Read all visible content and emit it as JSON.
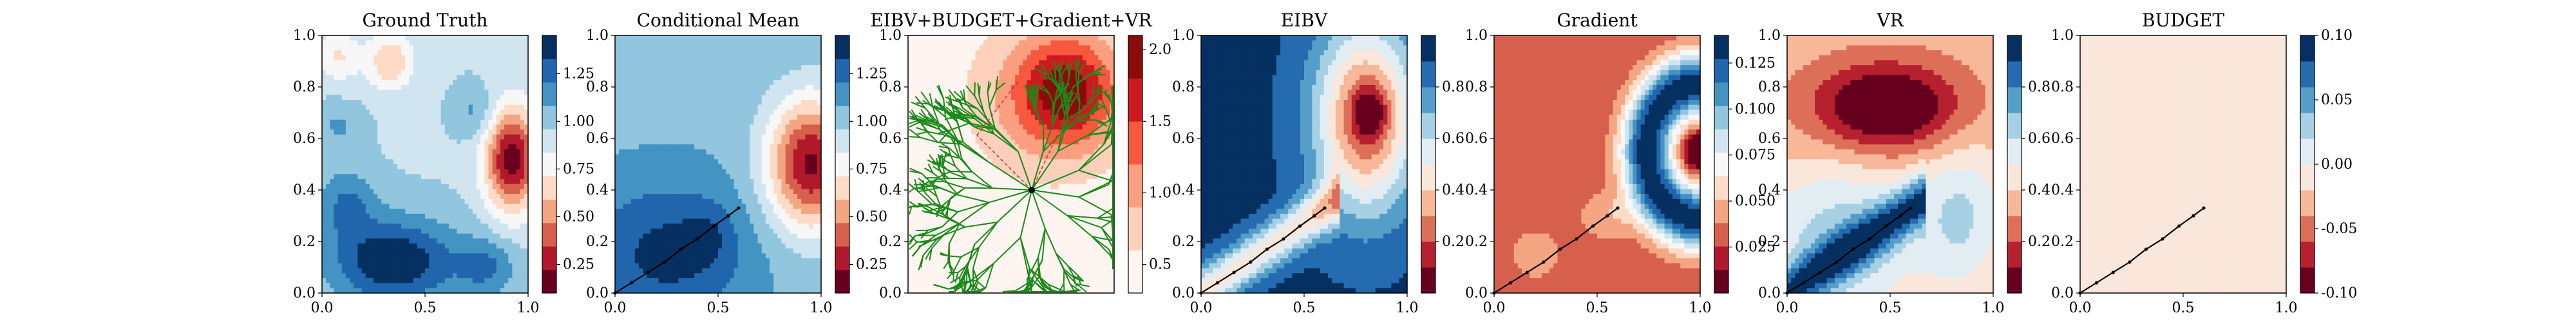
{
  "figure": {
    "background": "#ffffff",
    "panel_titles": [
      "Ground Truth",
      "Conditional Mean",
      "EIBV+BUDGET+Gradient+VR",
      "EIBV",
      "Gradient",
      "VR",
      "BUDGET"
    ]
  },
  "colors": {
    "rdbu": [
      "#67001f",
      "#b2182b",
      "#d6604d",
      "#f4a582",
      "#fddbc7",
      "#f7f7f7",
      "#d1e5f0",
      "#92c5de",
      "#4393c3",
      "#2166ac",
      "#053061"
    ],
    "reds": [
      "#fff5f0",
      "#fdd0bc",
      "#fc9e80",
      "#f7593f",
      "#ce1a1e",
      "#8c0a0a"
    ],
    "tree": "#1a8a1a",
    "path": "#000000",
    "dashed": "#d62728"
  },
  "chart_data": [
    {
      "type": "heatmap",
      "title": "Ground Truth",
      "xlim": [
        0,
        1
      ],
      "ylim": [
        0,
        1
      ],
      "xticks": [
        "0.0",
        "0.5",
        "1.0"
      ],
      "yticks": [
        "0.0",
        "0.2",
        "0.4",
        "0.6",
        "0.8",
        "1.0"
      ],
      "colorbar": {
        "range": [
          0.1,
          1.45
        ],
        "levels": 11,
        "cmap": "RdBu",
        "ticks": [
          "0.25",
          "0.50",
          "0.75",
          "1.00",
          "1.25"
        ]
      },
      "field": "ground_truth",
      "path": []
    },
    {
      "type": "heatmap",
      "title": "Conditional Mean",
      "xlim": [
        0,
        1
      ],
      "ylim": [
        0,
        1
      ],
      "xticks": [
        "0.0",
        "0.5",
        "1.0"
      ],
      "yticks": [
        "0.0",
        "0.2",
        "0.4",
        "0.6",
        "0.8",
        "1.0"
      ],
      "colorbar": {
        "range": [
          0.1,
          1.45
        ],
        "levels": 11,
        "cmap": "RdBu",
        "ticks": [
          "0.25",
          "0.50",
          "0.75",
          "1.00",
          "1.25"
        ]
      },
      "field": "cond_mean",
      "path": [
        [
          0.0,
          0.0
        ],
        [
          0.08,
          0.04
        ],
        [
          0.16,
          0.08
        ],
        [
          0.24,
          0.12
        ],
        [
          0.32,
          0.17
        ],
        [
          0.4,
          0.21
        ],
        [
          0.48,
          0.26
        ],
        [
          0.55,
          0.3
        ],
        [
          0.6,
          0.33
        ]
      ]
    },
    {
      "type": "heatmap",
      "title": "EIBV+BUDGET+Gradient+VR",
      "xlim": [
        0,
        1
      ],
      "ylim": [
        0,
        1
      ],
      "xticks": [],
      "yticks": [
        "0.0",
        "0.2",
        "0.4",
        "0.6",
        "0.8",
        "1.0"
      ],
      "colorbar": {
        "range": [
          0.3,
          2.1
        ],
        "levels": 6,
        "cmap": "Reds",
        "ticks": [
          "0.5",
          "1.0",
          "1.5",
          "2.0"
        ]
      },
      "field": "combined",
      "path": [],
      "tree_root": [
        0.6,
        0.4
      ]
    },
    {
      "type": "heatmap",
      "title": "EIBV",
      "xlim": [
        0,
        1
      ],
      "ylim": [
        0,
        1
      ],
      "xticks": [
        "0.0",
        "0.5",
        "1.0"
      ],
      "yticks": [
        "0.0",
        "0.2",
        "0.4",
        "0.6",
        "0.8",
        "1.0"
      ],
      "colorbar": {
        "range": [
          0,
          1
        ],
        "levels": 10,
        "cmap": "RdBu",
        "ticks": [
          "0.2",
          "0.4",
          "0.6",
          "0.8"
        ]
      },
      "field": "eibv",
      "path": [
        [
          0.0,
          0.0
        ],
        [
          0.08,
          0.04
        ],
        [
          0.16,
          0.08
        ],
        [
          0.24,
          0.12
        ],
        [
          0.32,
          0.17
        ],
        [
          0.4,
          0.21
        ],
        [
          0.48,
          0.26
        ],
        [
          0.55,
          0.3
        ],
        [
          0.6,
          0.33
        ]
      ]
    },
    {
      "type": "heatmap",
      "title": "Gradient",
      "xlim": [
        0,
        1
      ],
      "ylim": [
        0,
        1
      ],
      "xticks": [
        "0.0",
        "0.5",
        "1.0"
      ],
      "yticks": [
        "0.0",
        "0.2",
        "0.4",
        "0.6",
        "0.8",
        "1.0"
      ],
      "colorbar": {
        "range": [
          0,
          0.14
        ],
        "levels": 11,
        "cmap": "RdBu",
        "ticks": [
          "0.025",
          "0.050",
          "0.075",
          "0.100",
          "0.125"
        ]
      },
      "field": "gradient",
      "path": [
        [
          0.0,
          0.0
        ],
        [
          0.08,
          0.04
        ],
        [
          0.16,
          0.08
        ],
        [
          0.24,
          0.12
        ],
        [
          0.32,
          0.17
        ],
        [
          0.4,
          0.21
        ],
        [
          0.48,
          0.26
        ],
        [
          0.55,
          0.3
        ],
        [
          0.6,
          0.33
        ]
      ]
    },
    {
      "type": "heatmap",
      "title": "VR",
      "xlim": [
        0,
        1
      ],
      "ylim": [
        0,
        1
      ],
      "xticks": [
        "0.0",
        "0.5",
        "1.0"
      ],
      "yticks": [
        "0.0",
        "0.2",
        "0.4",
        "0.6",
        "0.8",
        "1.0"
      ],
      "colorbar": {
        "range": [
          0,
          1
        ],
        "levels": 10,
        "cmap": "RdBu",
        "ticks": [
          "0.2",
          "0.4",
          "0.6",
          "0.8"
        ]
      },
      "field": "vr",
      "path": [
        [
          0.0,
          0.0
        ],
        [
          0.08,
          0.04
        ],
        [
          0.16,
          0.08
        ],
        [
          0.24,
          0.12
        ],
        [
          0.32,
          0.17
        ],
        [
          0.4,
          0.21
        ],
        [
          0.48,
          0.26
        ],
        [
          0.55,
          0.3
        ],
        [
          0.6,
          0.33
        ]
      ]
    },
    {
      "type": "heatmap",
      "title": "BUDGET",
      "xlim": [
        0,
        1
      ],
      "ylim": [
        0,
        1
      ],
      "xticks": [
        "0.0",
        "0.5",
        "1.0"
      ],
      "yticks": [
        "0.0",
        "0.2",
        "0.4",
        "0.6",
        "0.8",
        "1.0"
      ],
      "colorbar": {
        "range": [
          -0.1,
          0.1
        ],
        "levels": 10,
        "cmap": "RdBu",
        "ticks": [
          "-0.10",
          "-0.05",
          "0.00",
          "0.05",
          "0.10"
        ]
      },
      "field": "budget",
      "path": [
        [
          0.0,
          0.0
        ],
        [
          0.08,
          0.04
        ],
        [
          0.16,
          0.08
        ],
        [
          0.24,
          0.12
        ],
        [
          0.32,
          0.17
        ],
        [
          0.4,
          0.21
        ],
        [
          0.48,
          0.26
        ],
        [
          0.55,
          0.3
        ],
        [
          0.6,
          0.33
        ]
      ]
    }
  ]
}
